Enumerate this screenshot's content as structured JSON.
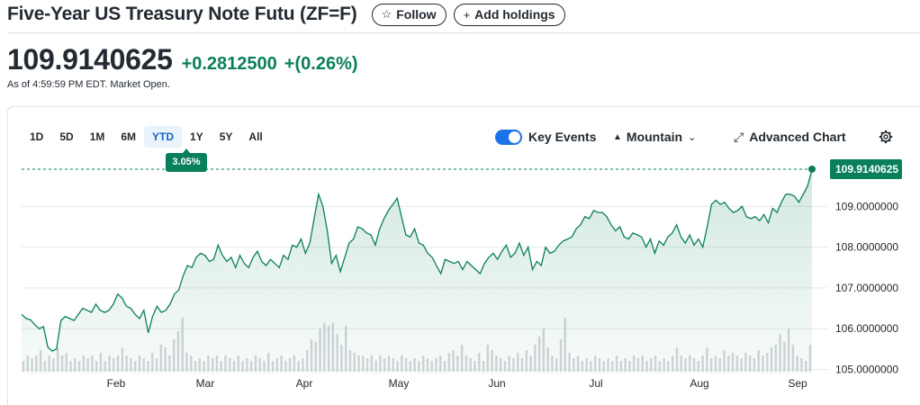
{
  "header": {
    "title": "Five-Year US Treasury Note Futu (ZF=F)",
    "follow_label": "Follow",
    "follow_icon": "star-outline-icon",
    "add_holdings_label": "Add holdings",
    "add_holdings_icon": "plus-icon"
  },
  "quote": {
    "price": "109.9140625",
    "change": "+0.2812500",
    "change_percent": "+(0.26%)",
    "as_of": "As of 4:59:59 PM EDT. Market Open.",
    "positive_color": "#0a7f5c"
  },
  "range_tabs": [
    {
      "label": "1D"
    },
    {
      "label": "5D"
    },
    {
      "label": "1M"
    },
    {
      "label": "6M"
    },
    {
      "label": "YTD",
      "active": true
    },
    {
      "label": "1Y"
    },
    {
      "label": "5Y"
    },
    {
      "label": "All"
    }
  ],
  "ytd_badge": "3.05%",
  "toolbar": {
    "key_events_label": "Key Events",
    "key_events_on": true,
    "chart_type_label": "Mountain",
    "advanced_chart_label": "Advanced Chart"
  },
  "chart_data": {
    "type": "area",
    "y_ticks": [
      "109.0000000",
      "108.0000000",
      "107.0000000",
      "106.0000000",
      "105.0000000"
    ],
    "x_ticks": [
      "Feb",
      "Mar",
      "Apr",
      "May",
      "Jun",
      "Jul",
      "Aug",
      "Sep"
    ],
    "ylim": [
      104.9,
      110.2
    ],
    "last_value_label": "109.9140625",
    "reference_line": 109.9140625,
    "grid": true,
    "series": [
      {
        "values": [
          106.35,
          106.25,
          106.22,
          106.1,
          106.0,
          106.05,
          105.55,
          105.45,
          105.5,
          106.2,
          106.3,
          106.25,
          106.2,
          106.35,
          106.5,
          106.45,
          106.4,
          106.6,
          106.45,
          106.4,
          106.45,
          106.6,
          106.85,
          106.75,
          106.55,
          106.5,
          106.35,
          106.25,
          106.45,
          105.9,
          106.3,
          106.55,
          106.4,
          106.45,
          106.6,
          106.85,
          106.95,
          107.3,
          107.55,
          107.5,
          107.75,
          107.85,
          107.8,
          107.65,
          107.7,
          108.05,
          107.8,
          107.65,
          107.75,
          107.5,
          107.8,
          107.6,
          107.5,
          107.75,
          107.9,
          107.65,
          107.55,
          107.7,
          107.6,
          107.5,
          107.8,
          107.7,
          108.05,
          108.0,
          108.2,
          107.85,
          108.1,
          108.7,
          109.3,
          109.0,
          108.4,
          107.6,
          107.8,
          107.4,
          107.75,
          108.1,
          108.2,
          108.5,
          108.45,
          108.35,
          108.3,
          108.05,
          108.45,
          108.7,
          108.9,
          109.05,
          109.2,
          108.75,
          108.3,
          108.25,
          108.45,
          108.1,
          108.05,
          107.85,
          107.75,
          107.55,
          107.35,
          107.7,
          107.65,
          107.6,
          107.65,
          107.45,
          107.65,
          107.55,
          107.45,
          107.35,
          107.6,
          107.75,
          107.85,
          107.7,
          107.9,
          108.05,
          107.75,
          107.85,
          108.1,
          107.8,
          108.0,
          107.45,
          107.65,
          107.55,
          108.0,
          107.85,
          107.9,
          108.05,
          108.15,
          108.2,
          108.25,
          108.45,
          108.55,
          108.75,
          108.7,
          108.9,
          108.85,
          108.85,
          108.75,
          108.55,
          108.4,
          108.5,
          108.25,
          108.2,
          108.35,
          108.3,
          108.25,
          108.0,
          108.2,
          107.85,
          108.15,
          108.05,
          108.25,
          108.35,
          108.55,
          108.25,
          108.1,
          108.3,
          108.05,
          108.2,
          108.0,
          108.5,
          109.05,
          109.15,
          109.05,
          109.1,
          108.95,
          108.85,
          108.9,
          109.0,
          108.75,
          108.7,
          108.75,
          108.65,
          108.8,
          108.6,
          108.95,
          108.85,
          109.1,
          109.3,
          109.3,
          109.25,
          109.1,
          109.3,
          109.5,
          109.9
        ]
      }
    ],
    "volume_series": [
      0.2,
      0.3,
      0.25,
      0.3,
      0.4,
      0.2,
      0.3,
      0.25,
      0.45,
      0.3,
      0.35,
      0.2,
      0.25,
      0.2,
      0.3,
      0.25,
      0.3,
      0.2,
      0.35,
      0.2,
      0.3,
      0.25,
      0.3,
      0.45,
      0.3,
      0.25,
      0.2,
      0.3,
      0.25,
      0.2,
      0.35,
      0.25,
      0.5,
      0.45,
      0.3,
      0.6,
      0.75,
      1.0,
      0.35,
      0.3,
      0.2,
      0.25,
      0.2,
      0.3,
      0.25,
      0.3,
      0.2,
      0.3,
      0.25,
      0.2,
      0.3,
      0.2,
      0.25,
      0.2,
      0.3,
      0.25,
      0.2,
      0.35,
      0.2,
      0.25,
      0.3,
      0.2,
      0.25,
      0.3,
      0.2,
      0.25,
      0.4,
      0.6,
      0.55,
      0.8,
      0.9,
      0.85,
      0.9,
      0.7,
      0.5,
      0.85,
      0.4,
      0.35,
      0.3,
      0.3,
      0.25,
      0.3,
      0.2,
      0.3,
      0.25,
      0.3,
      0.25,
      0.2,
      0.3,
      0.25,
      0.2,
      0.25,
      0.2,
      0.3,
      0.25,
      0.2,
      0.25,
      0.3,
      0.2,
      0.35,
      0.4,
      0.3,
      0.5,
      0.3,
      0.25,
      0.2,
      0.35,
      0.2,
      0.5,
      0.4,
      0.3,
      0.25,
      0.2,
      0.3,
      0.25,
      0.35,
      0.25,
      0.4,
      0.3,
      0.5,
      0.65,
      0.8,
      0.45,
      0.3,
      0.25,
      0.6,
      1.0,
      0.35,
      0.25,
      0.3,
      0.2,
      0.25,
      0.2,
      0.3,
      0.25,
      0.2,
      0.25,
      0.2,
      0.3,
      0.2,
      0.25,
      0.2,
      0.3,
      0.25,
      0.3,
      0.2,
      0.25,
      0.3,
      0.2,
      0.25,
      0.2,
      0.3,
      0.45,
      0.3,
      0.25,
      0.3,
      0.25,
      0.2,
      0.3,
      0.45,
      0.25,
      0.3,
      0.25,
      0.4,
      0.3,
      0.35,
      0.3,
      0.25,
      0.35,
      0.3,
      0.25,
      0.4,
      0.3,
      0.35,
      0.45,
      0.5,
      0.7,
      0.55,
      0.8,
      0.5,
      0.3,
      0.25,
      0.2,
      0.5
    ]
  }
}
